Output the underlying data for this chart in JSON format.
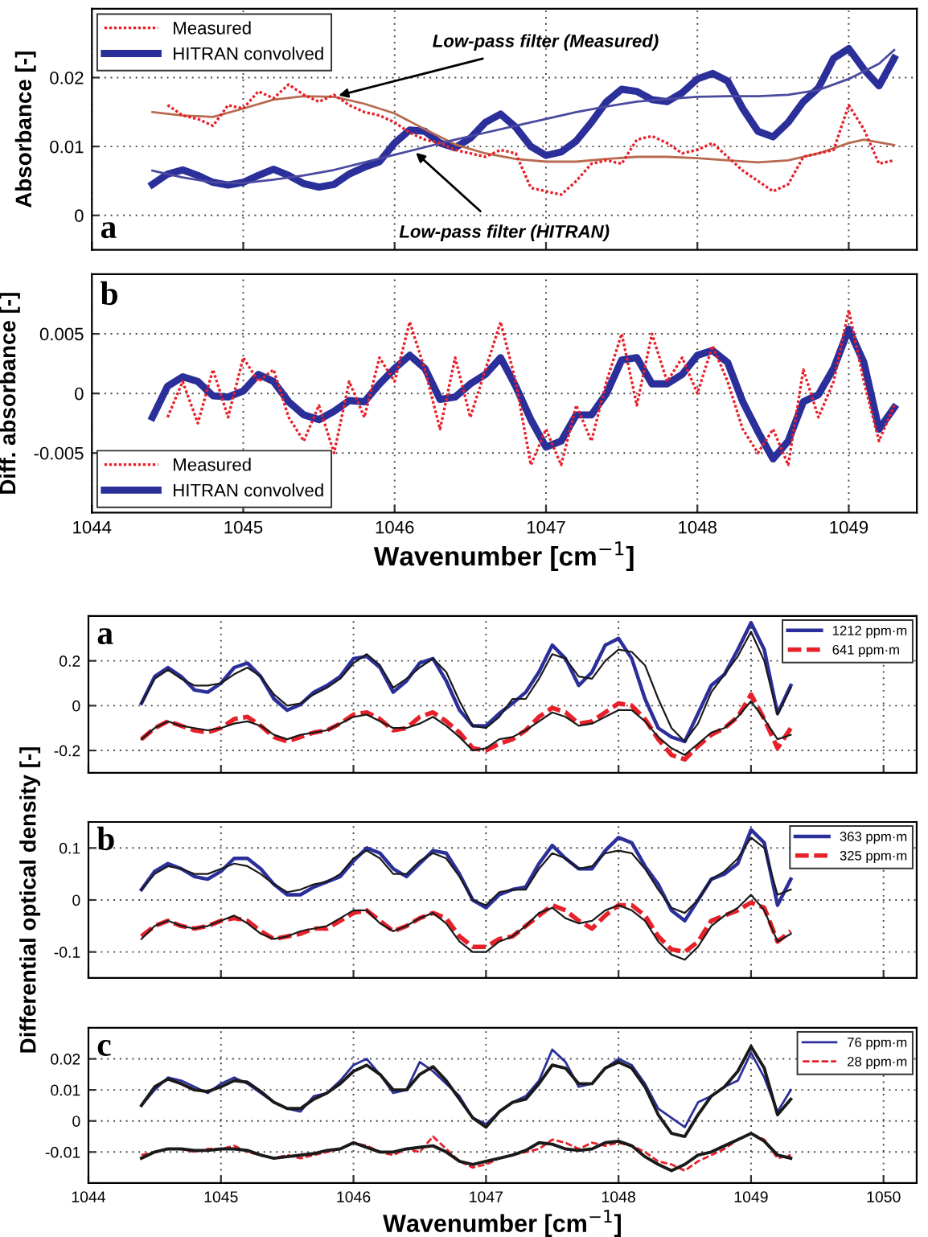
{
  "chart_data": [
    {
      "type": "line",
      "ylabel": "Absorbance [-]",
      "xlim": [
        1044,
        1049.45
      ],
      "ylim": [
        -0.005,
        0.03
      ],
      "xticks": [
        1044,
        1045,
        1046,
        1047,
        1048,
        1049
      ],
      "yticks": [
        0,
        0.01,
        0.02
      ],
      "tick_labels": "y",
      "grid": true,
      "legend": "top left",
      "annotations": [
        "a",
        {
          "text": "Low-pass filter (Measured)",
          "x": 1045.63,
          "y": 0.0174
        },
        {
          "text": "Low-pass filter (HITRAN)",
          "x": 1046.14,
          "y": 0.0091
        }
      ],
      "x": [
        1044.4,
        1044.5,
        1044.6,
        1044.7,
        1044.8,
        1044.9,
        1045.0,
        1045.1,
        1045.2,
        1045.3,
        1045.4,
        1045.5,
        1045.6,
        1045.7,
        1045.8,
        1045.9,
        1046.0,
        1046.1,
        1046.2,
        1046.3,
        1046.4,
        1046.5,
        1046.6,
        1046.7,
        1046.8,
        1046.9,
        1047.0,
        1047.1,
        1047.2,
        1047.3,
        1047.4,
        1047.5,
        1047.6,
        1047.7,
        1047.8,
        1047.9,
        1048.0,
        1048.1,
        1048.2,
        1048.3,
        1048.4,
        1048.5,
        1048.6,
        1048.7,
        1048.8,
        1048.9,
        1049.0,
        1049.1,
        1049.2,
        1049.3
      ],
      "series": [
        {
          "name": "Measured",
          "color": "#e8202a",
          "line_style": "dotted",
          "x": [
            1044.5,
            1044.6,
            1044.7,
            1044.8,
            1044.9,
            1045.0,
            1045.1,
            1045.2,
            1045.3,
            1045.4,
            1045.5,
            1045.6,
            1045.7,
            1045.8,
            1045.9,
            1046.0,
            1046.1,
            1046.2,
            1046.3,
            1046.4,
            1046.5,
            1046.6,
            1046.7,
            1046.8,
            1046.9,
            1047.0,
            1047.1,
            1047.2,
            1047.3,
            1047.4,
            1047.5,
            1047.6,
            1047.7,
            1047.8,
            1047.9,
            1048.0,
            1048.1,
            1048.2,
            1048.3,
            1048.4,
            1048.5,
            1048.6,
            1048.7,
            1048.8,
            1048.9,
            1049.0,
            1049.1,
            1049.2,
            1049.3
          ],
          "values": [
            0.016,
            0.0145,
            0.014,
            0.013,
            0.016,
            0.0155,
            0.018,
            0.017,
            0.019,
            0.0175,
            0.0165,
            0.0175,
            0.016,
            0.015,
            0.0145,
            0.0135,
            0.012,
            0.011,
            0.0105,
            0.0095,
            0.009,
            0.0085,
            0.0095,
            0.009,
            0.004,
            0.0035,
            0.003,
            0.005,
            0.0075,
            0.008,
            0.0075,
            0.011,
            0.0115,
            0.0105,
            0.009,
            0.0095,
            0.0105,
            0.0085,
            0.0065,
            0.005,
            0.0035,
            0.0045,
            0.0085,
            0.009,
            0.0095,
            0.016,
            0.0125,
            0.0075,
            0.008
          ]
        },
        {
          "name": "HITRAN convolved",
          "color": "#2b2f9a",
          "line_style": "solid",
          "values": [
            0.0045,
            0.006,
            0.0066,
            0.0058,
            0.0048,
            0.0044,
            0.0048,
            0.0058,
            0.0067,
            0.0058,
            0.0046,
            0.0041,
            0.0045,
            0.006,
            0.007,
            0.0078,
            0.0105,
            0.0124,
            0.0122,
            0.0105,
            0.0098,
            0.0112,
            0.0135,
            0.0147,
            0.0128,
            0.01,
            0.0087,
            0.0092,
            0.0108,
            0.0135,
            0.0165,
            0.0183,
            0.018,
            0.0168,
            0.0165,
            0.0178,
            0.0198,
            0.0206,
            0.0195,
            0.0155,
            0.0122,
            0.0114,
            0.0135,
            0.0165,
            0.0185,
            0.0228,
            0.0242,
            0.0212,
            0.0188,
            0.0228
          ]
        },
        {
          "color": "#b86a50",
          "line_style": "solid",
          "x": [
            1044.4,
            1044.6,
            1044.8,
            1045.0,
            1045.2,
            1045.4,
            1045.6,
            1045.8,
            1046.0,
            1046.2,
            1046.4,
            1046.6,
            1046.8,
            1047.0,
            1047.2,
            1047.4,
            1047.6,
            1047.8,
            1048.0,
            1048.2,
            1048.4,
            1048.6,
            1048.8,
            1049.0,
            1049.1,
            1049.3
          ],
          "values": [
            0.015,
            0.0145,
            0.0143,
            0.0155,
            0.0168,
            0.0173,
            0.0172,
            0.0162,
            0.0148,
            0.0125,
            0.0103,
            0.009,
            0.0082,
            0.0078,
            0.0078,
            0.0082,
            0.0085,
            0.0085,
            0.0083,
            0.008,
            0.0077,
            0.008,
            0.009,
            0.0105,
            0.011,
            0.0102
          ]
        },
        {
          "color": "#4a4aa0",
          "line_style": "solid",
          "x": [
            1044.4,
            1044.6,
            1044.8,
            1045.0,
            1045.2,
            1045.4,
            1045.6,
            1045.8,
            1046.0,
            1046.2,
            1046.4,
            1046.6,
            1046.8,
            1047.0,
            1047.2,
            1047.4,
            1047.6,
            1047.8,
            1048.0,
            1048.2,
            1048.4,
            1048.6,
            1048.8,
            1049.0,
            1049.2,
            1049.3
          ],
          "values": [
            0.0065,
            0.0055,
            0.0048,
            0.0047,
            0.0052,
            0.0058,
            0.0066,
            0.0077,
            0.0088,
            0.0099,
            0.011,
            0.012,
            0.013,
            0.014,
            0.015,
            0.0158,
            0.0165,
            0.0169,
            0.0172,
            0.0173,
            0.0173,
            0.0175,
            0.0182,
            0.0198,
            0.022,
            0.024
          ]
        }
      ]
    },
    {
      "type": "line",
      "ylabel": "Diff. absorbance [-]",
      "xlabel": "Wavenumber [cm$^{−1}$]",
      "xlim": [
        1044,
        1049.45
      ],
      "ylim": [
        -0.01,
        0.01
      ],
      "xticks": [
        1044,
        1045,
        1046,
        1047,
        1048,
        1049
      ],
      "yticks": [
        -0.005,
        0,
        0.005
      ],
      "grid": true,
      "legend": "bottom left",
      "annotations": [
        "b"
      ],
      "x": [
        1044.4,
        1044.5,
        1044.6,
        1044.7,
        1044.8,
        1044.9,
        1045.0,
        1045.1,
        1045.2,
        1045.3,
        1045.4,
        1045.5,
        1045.6,
        1045.7,
        1045.8,
        1045.9,
        1046.0,
        1046.1,
        1046.2,
        1046.3,
        1046.4,
        1046.5,
        1046.6,
        1046.7,
        1046.8,
        1046.9,
        1047.0,
        1047.1,
        1047.2,
        1047.3,
        1047.4,
        1047.5,
        1047.6,
        1047.7,
        1047.8,
        1047.9,
        1048.0,
        1048.1,
        1048.2,
        1048.3,
        1048.4,
        1048.5,
        1048.6,
        1048.7,
        1048.8,
        1048.9,
        1049.0,
        1049.1,
        1049.2,
        1049.3
      ],
      "series": [
        {
          "name": "Measured",
          "color": "#e8202a",
          "line_style": "dotted",
          "x": [
            1044.5,
            1044.6,
            1044.7,
            1044.8,
            1044.9,
            1045.0,
            1045.1,
            1045.2,
            1045.3,
            1045.4,
            1045.5,
            1045.6,
            1045.7,
            1045.8,
            1045.9,
            1046.0,
            1046.1,
            1046.2,
            1046.3,
            1046.4,
            1046.5,
            1046.6,
            1046.7,
            1046.8,
            1046.9,
            1047.0,
            1047.1,
            1047.2,
            1047.3,
            1047.4,
            1047.5,
            1047.6,
            1047.7,
            1047.8,
            1047.9,
            1048.0,
            1048.1,
            1048.2,
            1048.3,
            1048.4,
            1048.5,
            1048.6,
            1048.7,
            1048.8,
            1048.9,
            1049.0,
            1049.1,
            1049.2,
            1049.3
          ],
          "values": [
            -0.002,
            0.001,
            -0.0025,
            0.002,
            -0.002,
            0.003,
            0.001,
            0.002,
            -0.002,
            -0.004,
            -0.001,
            -0.005,
            0.001,
            -0.002,
            0.003,
            0.001,
            0.006,
            0.002,
            -0.003,
            0.003,
            -0.002,
            0.002,
            0.006,
            0.001,
            -0.006,
            -0.003,
            -0.006,
            -0.001,
            -0.004,
            0.001,
            0.005,
            -0.001,
            0.005,
            0.001,
            0.003,
            0,
            0.004,
            0.001,
            -0.003,
            -0.005,
            -0.003,
            -0.006,
            0.002,
            -0.002,
            0.001,
            0.007,
            0.001,
            -0.004,
            -0.001
          ]
        },
        {
          "name": "HITRAN convolved",
          "color": "#2b2f9a",
          "line_style": "solid",
          "values": [
            -0.002,
            0.0006,
            0.0014,
            0.001,
            -0.0002,
            -0.0003,
            0.0002,
            0.0016,
            0.001,
            -0.0007,
            -0.0018,
            -0.0022,
            -0.0015,
            -0.0006,
            -0.0007,
            0.0008,
            0.0021,
            0.0032,
            0.0021,
            -0.0005,
            -0.0003,
            0.0008,
            0.0016,
            0.003,
            0.0006,
            -0.0022,
            -0.0045,
            -0.004,
            -0.0018,
            -0.0018,
            0,
            0.0028,
            0.003,
            0.0008,
            0.0008,
            0.0016,
            0.0032,
            0.0036,
            0.0026,
            -0.0007,
            -0.0032,
            -0.0055,
            -0.004,
            -0.0007,
            -0.0001,
            0.0021,
            0.0054,
            0.0026,
            -0.003,
            -0.0012
          ]
        }
      ]
    },
    {
      "type": "line",
      "xlim": [
        1044,
        1050.25
      ],
      "ylim": [
        -0.3,
        0.4
      ],
      "xticks": [
        1044,
        1045,
        1046,
        1047,
        1048,
        1049,
        1050
      ],
      "yticks": [
        -0.2,
        0,
        0.2
      ],
      "tick_labels": "y",
      "grid": true,
      "legend": "top right",
      "annotations": [
        "a"
      ],
      "x": [
        1044.4,
        1044.5,
        1044.6,
        1044.7,
        1044.8,
        1044.9,
        1045.0,
        1045.1,
        1045.2,
        1045.3,
        1045.4,
        1045.5,
        1045.6,
        1045.7,
        1045.8,
        1045.9,
        1046.0,
        1046.1,
        1046.2,
        1046.3,
        1046.4,
        1046.5,
        1046.6,
        1046.7,
        1046.8,
        1046.9,
        1047.0,
        1047.1,
        1047.2,
        1047.3,
        1047.4,
        1047.5,
        1047.6,
        1047.7,
        1047.8,
        1047.9,
        1048.0,
        1048.1,
        1048.2,
        1048.3,
        1048.4,
        1048.5,
        1048.6,
        1048.7,
        1048.8,
        1048.9,
        1049.0,
        1049.1,
        1049.2,
        1049.3
      ],
      "series": [
        {
          "name": "1212 ppm·m",
          "color": "#2b2f9a",
          "line_style": "solid",
          "values": [
            0.01,
            0.13,
            0.17,
            0.13,
            0.07,
            0.06,
            0.1,
            0.17,
            0.19,
            0.13,
            0.03,
            -0.02,
            0.005,
            0.06,
            0.09,
            0.13,
            0.21,
            0.22,
            0.17,
            0.06,
            0.11,
            0.19,
            0.21,
            0.11,
            -0.02,
            -0.09,
            -0.09,
            -0.035,
            0.01,
            0.06,
            0.15,
            0.27,
            0.21,
            0.09,
            0.15,
            0.27,
            0.3,
            0.21,
            0.03,
            -0.1,
            -0.14,
            -0.16,
            -0.035,
            0.09,
            0.14,
            0.25,
            0.37,
            0.25,
            -0.035,
            0.09
          ]
        },
        {
          "name": "641 ppm·m",
          "color": "#e8202a",
          "line_style": "dashed",
          "values": [
            -0.15,
            -0.1,
            -0.07,
            -0.09,
            -0.11,
            -0.12,
            -0.1,
            -0.06,
            -0.05,
            -0.09,
            -0.14,
            -0.16,
            -0.14,
            -0.12,
            -0.11,
            -0.08,
            -0.04,
            -0.03,
            -0.06,
            -0.11,
            -0.1,
            -0.05,
            -0.03,
            -0.07,
            -0.12,
            -0.19,
            -0.2,
            -0.17,
            -0.15,
            -0.11,
            -0.05,
            -0.01,
            -0.03,
            -0.08,
            -0.07,
            -0.03,
            0.01,
            0,
            -0.06,
            -0.15,
            -0.22,
            -0.24,
            -0.18,
            -0.13,
            -0.1,
            -0.05,
            0.05,
            -0.06,
            -0.19,
            -0.1
          ]
        },
        {
          "color": "#1a1a1a",
          "line_style": "solid",
          "values": [
            0.01,
            0.12,
            0.16,
            0.12,
            0.09,
            0.09,
            0.1,
            0.14,
            0.17,
            0.13,
            0.05,
            0,
            0.01,
            0.05,
            0.08,
            0.12,
            0.19,
            0.23,
            0.18,
            0.08,
            0.12,
            0.17,
            0.21,
            0.15,
            0.02,
            -0.09,
            -0.1,
            -0.05,
            0.03,
            0.03,
            0.12,
            0.23,
            0.21,
            0.13,
            0.12,
            0.2,
            0.25,
            0.24,
            0.18,
            0.03,
            -0.1,
            -0.16,
            -0.08,
            0.06,
            0.14,
            0.22,
            0.33,
            0.2,
            -0.04,
            0.08
          ]
        },
        {
          "color": "#1a1a1a",
          "line_style": "solid",
          "values": [
            -0.15,
            -0.1,
            -0.07,
            -0.09,
            -0.1,
            -0.11,
            -0.1,
            -0.08,
            -0.07,
            -0.09,
            -0.13,
            -0.15,
            -0.13,
            -0.12,
            -0.11,
            -0.08,
            -0.05,
            -0.04,
            -0.07,
            -0.1,
            -0.1,
            -0.08,
            -0.05,
            -0.09,
            -0.14,
            -0.2,
            -0.19,
            -0.15,
            -0.14,
            -0.11,
            -0.07,
            -0.03,
            -0.05,
            -0.09,
            -0.08,
            -0.05,
            -0.02,
            -0.02,
            -0.07,
            -0.14,
            -0.19,
            -0.22,
            -0.17,
            -0.12,
            -0.1,
            -0.05,
            0.02,
            -0.06,
            -0.15,
            -0.13
          ]
        }
      ]
    },
    {
      "type": "line",
      "ylabel": "Differential optical density [-]",
      "xlim": [
        1044,
        1050.25
      ],
      "ylim": [
        -0.15,
        0.15
      ],
      "xticks": [
        1044,
        1045,
        1046,
        1047,
        1048,
        1049,
        1050
      ],
      "yticks": [
        -0.1,
        0,
        0.1
      ],
      "tick_labels": "y",
      "grid": true,
      "legend": "top right",
      "annotations": [
        "b"
      ],
      "x": [
        1044.4,
        1044.5,
        1044.6,
        1044.7,
        1044.8,
        1044.9,
        1045.0,
        1045.1,
        1045.2,
        1045.3,
        1045.4,
        1045.5,
        1045.6,
        1045.7,
        1045.8,
        1045.9,
        1046.0,
        1046.1,
        1046.2,
        1046.3,
        1046.4,
        1046.5,
        1046.6,
        1046.7,
        1046.8,
        1046.9,
        1047.0,
        1047.1,
        1047.2,
        1047.3,
        1047.4,
        1047.5,
        1047.6,
        1047.7,
        1047.8,
        1047.9,
        1048.0,
        1048.1,
        1048.2,
        1048.3,
        1048.4,
        1048.5,
        1048.6,
        1048.7,
        1048.8,
        1048.9,
        1049.0,
        1049.1,
        1049.2,
        1049.3
      ],
      "series": [
        {
          "name": "363 ppm·m",
          "color": "#2b2f9a",
          "line_style": "solid",
          "values": [
            0.02,
            0.055,
            0.07,
            0.06,
            0.045,
            0.04,
            0.055,
            0.08,
            0.08,
            0.06,
            0.03,
            0.01,
            0.01,
            0.025,
            0.035,
            0.045,
            0.075,
            0.1,
            0.09,
            0.06,
            0.045,
            0.07,
            0.095,
            0.09,
            0.05,
            0,
            -0.015,
            0.01,
            0.02,
            0.025,
            0.07,
            0.105,
            0.08,
            0.06,
            0.06,
            0.095,
            0.12,
            0.11,
            0.065,
            0.03,
            -0.02,
            -0.04,
            0,
            0.04,
            0.05,
            0.07,
            0.135,
            0.11,
            -0.01,
            0.04
          ]
        },
        {
          "name": "325 ppm·m",
          "color": "#e8202a",
          "line_style": "dashed",
          "values": [
            -0.07,
            -0.05,
            -0.04,
            -0.05,
            -0.055,
            -0.05,
            -0.04,
            -0.035,
            -0.04,
            -0.06,
            -0.075,
            -0.07,
            -0.065,
            -0.055,
            -0.055,
            -0.04,
            -0.025,
            -0.02,
            -0.04,
            -0.06,
            -0.05,
            -0.035,
            -0.025,
            -0.035,
            -0.07,
            -0.09,
            -0.09,
            -0.075,
            -0.07,
            -0.05,
            -0.03,
            -0.01,
            -0.02,
            -0.04,
            -0.055,
            -0.03,
            -0.01,
            -0.01,
            -0.03,
            -0.07,
            -0.095,
            -0.1,
            -0.08,
            -0.04,
            -0.03,
            -0.02,
            -0.005,
            -0.015,
            -0.08,
            -0.06
          ]
        },
        {
          "color": "#1a1a1a",
          "line_style": "solid",
          "values": [
            0.02,
            0.05,
            0.065,
            0.06,
            0.05,
            0.05,
            0.06,
            0.07,
            0.065,
            0.05,
            0.03,
            0.015,
            0.02,
            0.03,
            0.035,
            0.05,
            0.08,
            0.095,
            0.08,
            0.05,
            0.05,
            0.075,
            0.09,
            0.08,
            0.045,
            0,
            -0.01,
            0.015,
            0.02,
            0.02,
            0.06,
            0.09,
            0.08,
            0.06,
            0.065,
            0.09,
            0.095,
            0.09,
            0.06,
            0.02,
            -0.015,
            -0.025,
            0,
            0.04,
            0.055,
            0.08,
            0.12,
            0.1,
            0.01,
            0.02
          ]
        },
        {
          "color": "#1a1a1a",
          "line_style": "solid",
          "values": [
            -0.075,
            -0.05,
            -0.04,
            -0.05,
            -0.055,
            -0.05,
            -0.04,
            -0.03,
            -0.045,
            -0.065,
            -0.075,
            -0.07,
            -0.06,
            -0.055,
            -0.05,
            -0.035,
            -0.02,
            -0.02,
            -0.045,
            -0.06,
            -0.05,
            -0.035,
            -0.025,
            -0.045,
            -0.08,
            -0.1,
            -0.1,
            -0.08,
            -0.07,
            -0.05,
            -0.025,
            -0.015,
            -0.035,
            -0.045,
            -0.04,
            -0.02,
            -0.01,
            -0.02,
            -0.04,
            -0.08,
            -0.105,
            -0.115,
            -0.09,
            -0.05,
            -0.03,
            -0.015,
            0.01,
            -0.02,
            -0.08,
            -0.065
          ]
        }
      ]
    },
    {
      "type": "line",
      "xlabel": "Wavenumber [cm$^{−1}$]",
      "xlim": [
        1044,
        1050.25
      ],
      "ylim": [
        -0.02,
        0.03
      ],
      "xticks": [
        1044,
        1045,
        1046,
        1047,
        1048,
        1049,
        1050
      ],
      "yticks": [
        -0.01,
        0,
        0.01,
        0.02
      ],
      "grid": true,
      "legend": "top right",
      "annotations": [
        "c"
      ],
      "x": [
        1044.4,
        1044.5,
        1044.6,
        1044.7,
        1044.8,
        1044.9,
        1045.0,
        1045.1,
        1045.2,
        1045.3,
        1045.4,
        1045.5,
        1045.6,
        1045.7,
        1045.8,
        1045.9,
        1046.0,
        1046.1,
        1046.2,
        1046.3,
        1046.4,
        1046.5,
        1046.6,
        1046.7,
        1046.8,
        1046.9,
        1047.0,
        1047.1,
        1047.2,
        1047.3,
        1047.4,
        1047.5,
        1047.6,
        1047.7,
        1047.8,
        1047.9,
        1048.0,
        1048.1,
        1048.2,
        1048.3,
        1048.4,
        1048.5,
        1048.6,
        1048.7,
        1048.8,
        1048.9,
        1049.0,
        1049.1,
        1049.2,
        1049.3
      ],
      "series": [
        {
          "name": "76 ppm·m",
          "color": "#2b2f9a",
          "line_style": "solid",
          "values": [
            0.005,
            0.01,
            0.014,
            0.013,
            0.011,
            0.009,
            0.012,
            0.014,
            0.012,
            0.009,
            0.006,
            0.004,
            0.003,
            0.008,
            0.009,
            0.013,
            0.018,
            0.02,
            0.015,
            0.009,
            0.01,
            0.019,
            0.016,
            0.012,
            0.008,
            0.001,
            -0.001,
            0.003,
            0.006,
            0.008,
            0.013,
            0.023,
            0.019,
            0.011,
            0.012,
            0.017,
            0.02,
            0.018,
            0.012,
            0.004,
            0.001,
            -0.002,
            0.006,
            0.008,
            0.011,
            0.013,
            0.022,
            0.014,
            0.003,
            0.01
          ]
        },
        {
          "name": "28 ppm·m",
          "color": "#e8202a",
          "line_style": "dashed",
          "values": [
            -0.011,
            -0.01,
            -0.009,
            -0.009,
            -0.01,
            -0.009,
            -0.009,
            -0.008,
            -0.01,
            -0.011,
            -0.012,
            -0.011,
            -0.012,
            -0.011,
            -0.01,
            -0.009,
            -0.007,
            -0.008,
            -0.01,
            -0.011,
            -0.009,
            -0.01,
            -0.005,
            -0.009,
            -0.013,
            -0.015,
            -0.014,
            -0.012,
            -0.011,
            -0.01,
            -0.009,
            -0.006,
            -0.007,
            -0.009,
            -0.007,
            -0.008,
            -0.007,
            -0.008,
            -0.01,
            -0.013,
            -0.014,
            -0.016,
            -0.013,
            -0.011,
            -0.009,
            -0.006,
            -0.004,
            -0.006,
            -0.012,
            -0.011
          ]
        },
        {
          "color": "#1a1a1a",
          "line_style": "solid",
          "values": [
            0.005,
            0.011,
            0.0135,
            0.012,
            0.01,
            0.0095,
            0.011,
            0.013,
            0.0125,
            0.0095,
            0.006,
            0.004,
            0.004,
            0.007,
            0.009,
            0.012,
            0.016,
            0.018,
            0.015,
            0.01,
            0.01,
            0.015,
            0.0175,
            0.013,
            0.007,
            0.001,
            -0.002,
            0.003,
            0.006,
            0.007,
            0.012,
            0.018,
            0.017,
            0.012,
            0.012,
            0.017,
            0.019,
            0.017,
            0.011,
            0.002,
            -0.004,
            -0.005,
            0.002,
            0.008,
            0.011,
            0.016,
            0.024,
            0.017,
            0.002,
            0.007
          ]
        },
        {
          "color": "#1a1a1a",
          "line_style": "solid",
          "values": [
            -0.012,
            -0.01,
            -0.009,
            -0.009,
            -0.0095,
            -0.0095,
            -0.009,
            -0.009,
            -0.0095,
            -0.011,
            -0.012,
            -0.0115,
            -0.011,
            -0.0105,
            -0.0095,
            -0.009,
            -0.007,
            -0.0085,
            -0.01,
            -0.01,
            -0.009,
            -0.0085,
            -0.008,
            -0.01,
            -0.013,
            -0.014,
            -0.013,
            -0.012,
            -0.011,
            -0.0095,
            -0.007,
            -0.0075,
            -0.009,
            -0.0095,
            -0.009,
            -0.007,
            -0.0065,
            -0.008,
            -0.0115,
            -0.014,
            -0.016,
            -0.014,
            -0.011,
            -0.01,
            -0.008,
            -0.006,
            -0.004,
            -0.0065,
            -0.011,
            -0.012
          ]
        }
      ]
    }
  ]
}
